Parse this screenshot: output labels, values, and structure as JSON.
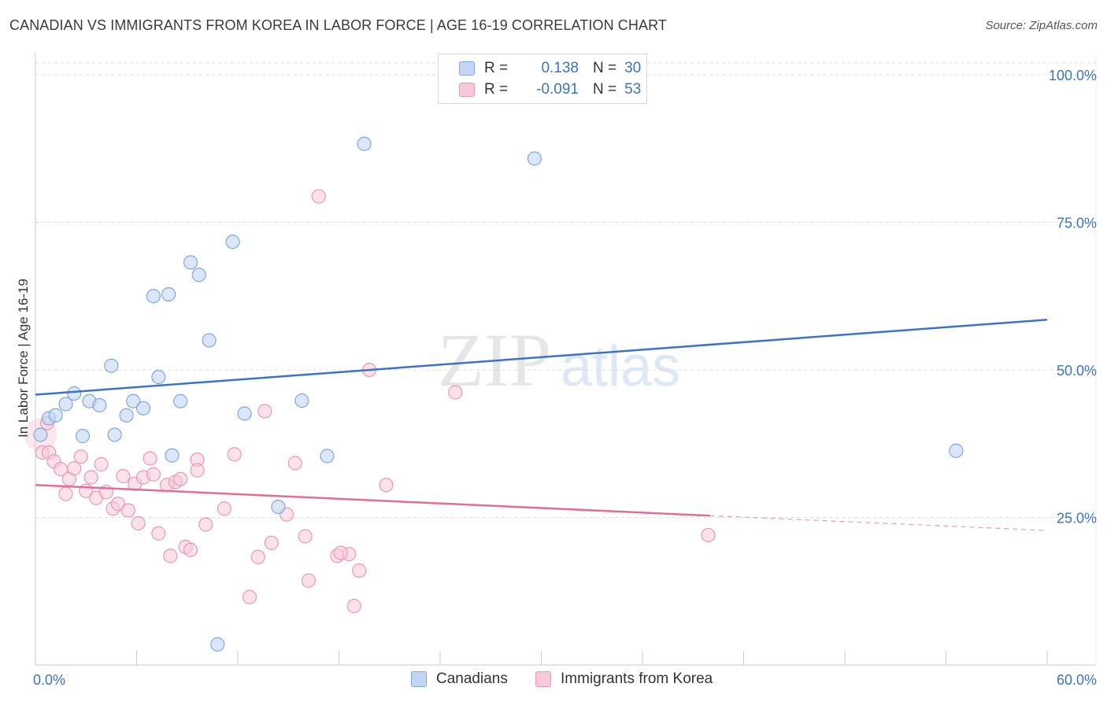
{
  "title": "CANADIAN VS IMMIGRANTS FROM KOREA IN LABOR FORCE | AGE 16-19 CORRELATION CHART",
  "source": "Source: ZipAtlas.com",
  "watermark": {
    "zip": "ZIP",
    "atlas": "atlas"
  },
  "colors": {
    "blue": "#3b73c8",
    "blue_fill": "#c3d6f3",
    "blue_stroke": "#7ea7e0",
    "pink": "#e36d93",
    "pink_fill": "#f8cad9",
    "pink_stroke": "#ea98b2",
    "grid": "#dcdcdc",
    "axis_text": "#3b73c8"
  },
  "legend": {
    "rows": [
      {
        "r_label": "R =",
        "r_value": "0.138",
        "n_label": "N =",
        "n_value": "30"
      },
      {
        "r_label": "R =",
        "r_value": "-0.091",
        "n_label": "N =",
        "n_value": "53"
      }
    ]
  },
  "bottom_legend": {
    "blue": "Canadians",
    "pink": "Immigrants from Korea"
  },
  "chart_data": {
    "type": "scatter",
    "title": "CANADIAN VS IMMIGRANTS FROM KOREA IN LABOR FORCE | AGE 16-19 CORRELATION CHART",
    "xlabel": "",
    "ylabel": "In Labor Force | Age 16-19",
    "xlim": [
      0,
      60
    ],
    "ylim": [
      0,
      102
    ],
    "x_tick_labels": [
      "0.0%",
      "60.0%"
    ],
    "y_ticks": [
      25,
      50,
      75,
      100
    ],
    "y_tick_labels": [
      "25.0%",
      "50.0%",
      "75.0%",
      "100.0%"
    ],
    "series": [
      {
        "name": "Canadians",
        "r": 0.138,
        "n": 30,
        "trend": {
          "x": [
            0,
            60
          ],
          "y": [
            45.8,
            58.5
          ],
          "dashed_from": null
        },
        "points": [
          [
            0.3,
            39.0
          ],
          [
            0.8,
            41.8
          ],
          [
            1.2,
            42.3
          ],
          [
            1.8,
            44.2
          ],
          [
            2.3,
            46.0
          ],
          [
            2.8,
            38.8
          ],
          [
            3.2,
            44.7
          ],
          [
            3.8,
            44.0
          ],
          [
            4.5,
            50.7
          ],
          [
            4.7,
            39.0
          ],
          [
            5.4,
            42.3
          ],
          [
            5.8,
            44.7
          ],
          [
            6.4,
            43.5
          ],
          [
            7.0,
            62.5
          ],
          [
            7.3,
            48.8
          ],
          [
            7.9,
            62.8
          ],
          [
            8.1,
            35.5
          ],
          [
            8.6,
            44.7
          ],
          [
            9.2,
            68.2
          ],
          [
            9.7,
            66.1
          ],
          [
            10.3,
            55.0
          ],
          [
            10.8,
            3.5
          ],
          [
            11.7,
            71.7
          ],
          [
            12.4,
            42.6
          ],
          [
            14.4,
            26.8
          ],
          [
            15.8,
            44.8
          ],
          [
            17.3,
            35.4
          ],
          [
            19.5,
            88.3
          ],
          [
            29.6,
            85.8
          ],
          [
            54.6,
            36.3
          ]
        ]
      },
      {
        "name": "Immigrants from Korea",
        "r": -0.091,
        "n": 53,
        "trend": {
          "x": [
            0,
            40
          ],
          "y": [
            30.5,
            25.3
          ],
          "dashed_to": [
            60,
            22.8
          ]
        },
        "points": [
          [
            0.4,
            36.0
          ],
          [
            0.7,
            41.0
          ],
          [
            0.8,
            36.0
          ],
          [
            1.1,
            34.5
          ],
          [
            1.5,
            33.2
          ],
          [
            1.8,
            29.0
          ],
          [
            2.0,
            31.5
          ],
          [
            2.3,
            33.3
          ],
          [
            2.7,
            35.3
          ],
          [
            3.0,
            29.5
          ],
          [
            3.3,
            31.8
          ],
          [
            3.6,
            28.3
          ],
          [
            3.9,
            34.0
          ],
          [
            4.2,
            29.3
          ],
          [
            4.6,
            26.5
          ],
          [
            4.9,
            27.3
          ],
          [
            5.2,
            32.0
          ],
          [
            5.5,
            26.2
          ],
          [
            5.9,
            30.7
          ],
          [
            6.1,
            24.0
          ],
          [
            6.4,
            31.8
          ],
          [
            6.8,
            35.0
          ],
          [
            7.0,
            32.3
          ],
          [
            7.3,
            22.3
          ],
          [
            7.8,
            30.5
          ],
          [
            8.0,
            18.5
          ],
          [
            8.3,
            31.0
          ],
          [
            8.6,
            31.5
          ],
          [
            8.9,
            20.0
          ],
          [
            9.2,
            19.5
          ],
          [
            9.6,
            34.8
          ],
          [
            9.6,
            33.0
          ],
          [
            10.1,
            23.8
          ],
          [
            11.2,
            26.5
          ],
          [
            11.8,
            35.7
          ],
          [
            12.7,
            11.5
          ],
          [
            13.2,
            18.3
          ],
          [
            13.6,
            43.0
          ],
          [
            14.0,
            20.7
          ],
          [
            14.9,
            25.5
          ],
          [
            15.4,
            34.2
          ],
          [
            16.0,
            21.8
          ],
          [
            16.2,
            14.3
          ],
          [
            16.8,
            79.4
          ],
          [
            17.9,
            18.5
          ],
          [
            18.6,
            18.8
          ],
          [
            18.9,
            10.0
          ],
          [
            19.2,
            16.0
          ],
          [
            20.8,
            30.5
          ],
          [
            24.9,
            46.2
          ],
          [
            39.9,
            22.0
          ],
          [
            18.1,
            19.0
          ],
          [
            19.8,
            50.0
          ]
        ]
      }
    ]
  }
}
